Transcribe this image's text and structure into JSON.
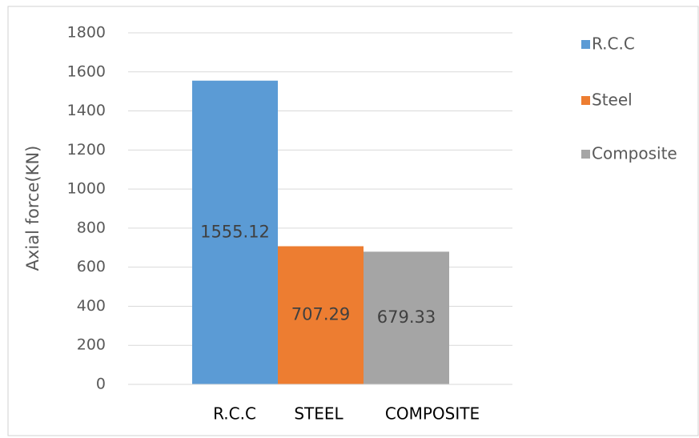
{
  "chart_data": {
    "type": "bar",
    "y_label": "Axial force(KN)",
    "categories": [
      "R.C.C",
      "STEEL",
      "COMPOSITE"
    ],
    "series": [
      {
        "name": "R.C.C",
        "color": "#5b9bd5",
        "values": [
          1555.12,
          null,
          null
        ]
      },
      {
        "name": "Steel",
        "color": "#ed7d31",
        "values": [
          null,
          707.29,
          null
        ]
      },
      {
        "name": "Composite",
        "color": "#a5a5a5",
        "values": [
          null,
          null,
          679.33
        ]
      }
    ],
    "ylim": [
      0,
      1800
    ],
    "yticks": [
      0,
      200,
      400,
      600,
      800,
      1000,
      1200,
      1400,
      1600,
      1800
    ],
    "grid": true,
    "legend": "right"
  }
}
